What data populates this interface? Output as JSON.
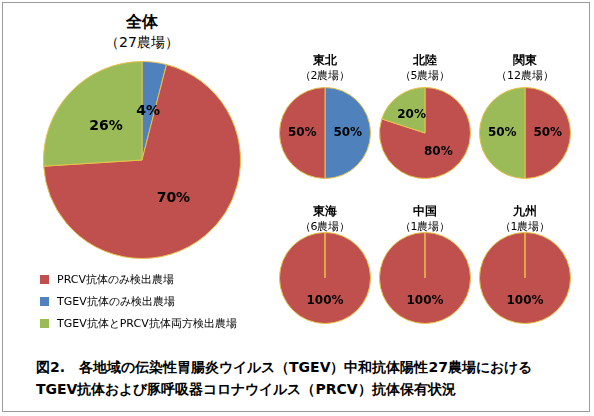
{
  "chart_data": [
    {
      "type": "pie",
      "title": "全体",
      "subtitle": "（27農場）",
      "categories": [
        "PRCV抗体のみ検出農場",
        "TGEV抗体のみ検出農場",
        "TGEV抗体とPRCV抗体両方検出農場"
      ],
      "values": [
        70,
        4,
        26
      ],
      "value_labels": [
        "70%",
        "4%",
        "26%"
      ],
      "colors": [
        "#c0504d",
        "#4f81bd",
        "#9bbb59"
      ],
      "data_labels": true,
      "legend": "bottom-left"
    },
    {
      "type": "pie",
      "title": "東北",
      "subtitle": "（2農場）",
      "categories": [
        "PRCV抗体のみ検出農場",
        "TGEV抗体のみ検出農場",
        "TGEV抗体とPRCV抗体両方検出農場"
      ],
      "values": [
        50,
        50,
        0
      ],
      "value_labels": [
        "50%",
        "50%",
        null
      ],
      "colors": [
        "#c0504d",
        "#4f81bd",
        "#9bbb59"
      ],
      "data_labels": true
    },
    {
      "type": "pie",
      "title": "北陸",
      "subtitle": "（5農場）",
      "categories": [
        "PRCV抗体のみ検出農場",
        "TGEV抗体のみ検出農場",
        "TGEV抗体とPRCV抗体両方検出農場"
      ],
      "values": [
        80,
        0,
        20
      ],
      "value_labels": [
        "80%",
        null,
        "20%"
      ],
      "colors": [
        "#c0504d",
        "#4f81bd",
        "#9bbb59"
      ],
      "data_labels": true
    },
    {
      "type": "pie",
      "title": "関東",
      "subtitle": "（12農場）",
      "categories": [
        "PRCV抗体のみ検出農場",
        "TGEV抗体のみ検出農場",
        "TGEV抗体とPRCV抗体両方検出農場"
      ],
      "values": [
        50,
        0,
        50
      ],
      "value_labels": [
        "50%",
        null,
        "50%"
      ],
      "colors": [
        "#c0504d",
        "#4f81bd",
        "#9bbb59"
      ],
      "data_labels": true
    },
    {
      "type": "pie",
      "title": "東海",
      "subtitle": "（6農場）",
      "categories": [
        "PRCV抗体のみ検出農場",
        "TGEV抗体のみ検出農場",
        "TGEV抗体とPRCV抗体両方検出農場"
      ],
      "values": [
        100,
        0,
        0
      ],
      "value_labels": [
        "100%",
        null,
        null
      ],
      "colors": [
        "#c0504d",
        "#4f81bd",
        "#9bbb59"
      ],
      "data_labels": true
    },
    {
      "type": "pie",
      "title": "中国",
      "subtitle": "（1農場）",
      "categories": [
        "PRCV抗体のみ検出農場",
        "TGEV抗体のみ検出農場",
        "TGEV抗体とPRCV抗体両方検出農場"
      ],
      "values": [
        100,
        0,
        0
      ],
      "value_labels": [
        "100%",
        null,
        null
      ],
      "colors": [
        "#c0504d",
        "#4f81bd",
        "#9bbb59"
      ],
      "data_labels": true
    },
    {
      "type": "pie",
      "title": "九州",
      "subtitle": "（1農場）",
      "categories": [
        "PRCV抗体のみ検出農場",
        "TGEV抗体のみ検出農場",
        "TGEV抗体とPRCV抗体両方検出農場"
      ],
      "values": [
        100,
        0,
        0
      ],
      "value_labels": [
        "100%",
        null,
        null
      ],
      "colors": [
        "#c0504d",
        "#4f81bd",
        "#9bbb59"
      ],
      "data_labels": true
    }
  ],
  "caption": "図2.　各地域の伝染性胃腸炎ウイルス（TGEV）中和抗体陽性27農場におけるTGEV抗体および豚呼吸器コロナウイルス（PRCV）抗体保有状況"
}
